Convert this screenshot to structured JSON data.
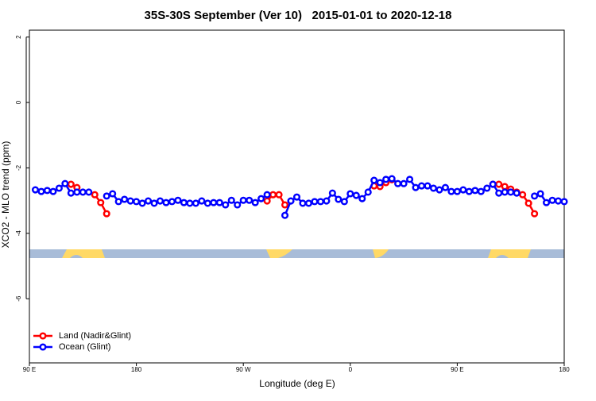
{
  "chart_data": {
    "type": "line",
    "title": "35S-30S September (Ver 10)   2015-01-01 to 2020-12-18",
    "x_label": "Longitude (deg E)",
    "y_label": "XCO2 - MLO trend (ppm)",
    "x": [
      95,
      100,
      105,
      110,
      115,
      120,
      125,
      130,
      135,
      140,
      145,
      150,
      155,
      160,
      165,
      170,
      175,
      180,
      185,
      190,
      195,
      200,
      205,
      210,
      215,
      220,
      225,
      230,
      235,
      240,
      245,
      250,
      255,
      260,
      265,
      270,
      275,
      280,
      285,
      290,
      295,
      300,
      305,
      310,
      315,
      320,
      325,
      330,
      335,
      340,
      345,
      350,
      355,
      360,
      365,
      370,
      375,
      380,
      385,
      390,
      395,
      400,
      405,
      410,
      415,
      420,
      425,
      430,
      435,
      440,
      445,
      450,
      455,
      460,
      465,
      470,
      475,
      480,
      485,
      490,
      495,
      500,
      505,
      510,
      515,
      520,
      525,
      530,
      535,
      540
    ],
    "xlim": [
      90,
      540
    ],
    "xticks": [
      {
        "value": 90,
        "label": "90 E"
      },
      180,
      {
        "value": 270,
        "label": "90 W"
      },
      {
        "value": 360,
        "label": "0"
      },
      {
        "value": 450,
        "label": "90 E"
      },
      {
        "value": 540,
        "label": "180"
      }
    ],
    "ylim": [
      -7.96,
      2.21
    ],
    "yticks": [
      2,
      0,
      -2,
      -4,
      -6
    ],
    "legend": "bottom-left",
    "series": [
      {
        "name": "Land (Nadir&Glint)",
        "color": "#ff0000",
        "values": [
          null,
          null,
          null,
          null,
          null,
          null,
          -2.5,
          -2.6,
          null,
          null,
          -2.82,
          -3.06,
          -3.4,
          null,
          null,
          null,
          null,
          null,
          null,
          null,
          null,
          null,
          null,
          null,
          null,
          null,
          null,
          null,
          null,
          null,
          null,
          null,
          null,
          null,
          null,
          null,
          null,
          null,
          null,
          -3.01,
          -2.82,
          -2.82,
          -3.13,
          null,
          null,
          null,
          null,
          null,
          null,
          null,
          null,
          null,
          null,
          null,
          null,
          null,
          null,
          -2.55,
          -2.57,
          -2.45,
          -2.36,
          null,
          null,
          null,
          null,
          null,
          null,
          null,
          null,
          null,
          null,
          null,
          null,
          null,
          null,
          null,
          null,
          -2.5,
          -2.5,
          -2.57,
          -2.65,
          -2.74,
          -2.82,
          -3.08,
          -3.4,
          null,
          null,
          null,
          null,
          null
        ]
      },
      {
        "name": "Ocean (Glint)",
        "color": "#0000ff",
        "values": [
          -2.67,
          -2.72,
          -2.69,
          -2.72,
          -2.62,
          -2.48,
          -2.77,
          -2.74,
          -2.74,
          -2.74,
          null,
          null,
          -2.86,
          -2.79,
          -3.03,
          -2.96,
          -3.01,
          -3.03,
          -3.08,
          -3.01,
          -3.08,
          -3.01,
          -3.06,
          -3.03,
          -2.99,
          -3.06,
          -3.08,
          -3.08,
          -3.01,
          -3.08,
          -3.06,
          -3.06,
          -3.13,
          -2.99,
          -3.13,
          -2.99,
          -2.99,
          -3.06,
          -2.94,
          -2.82,
          null,
          null,
          -3.45,
          -3.01,
          -2.89,
          -3.08,
          -3.08,
          -3.03,
          -3.03,
          -3.01,
          -2.77,
          -2.96,
          -3.03,
          -2.79,
          -2.84,
          -2.94,
          -2.74,
          -2.38,
          -2.45,
          -2.35,
          -2.33,
          -2.48,
          -2.48,
          -2.35,
          -2.6,
          -2.55,
          -2.55,
          -2.62,
          -2.67,
          -2.6,
          -2.72,
          -2.72,
          -2.67,
          -2.72,
          -2.69,
          -2.72,
          -2.62,
          -2.5,
          -2.77,
          -2.74,
          -2.74,
          -2.77,
          null,
          null,
          -2.86,
          -2.79,
          -3.06,
          -2.99,
          -3.01,
          -3.03
        ]
      }
    ]
  }
}
